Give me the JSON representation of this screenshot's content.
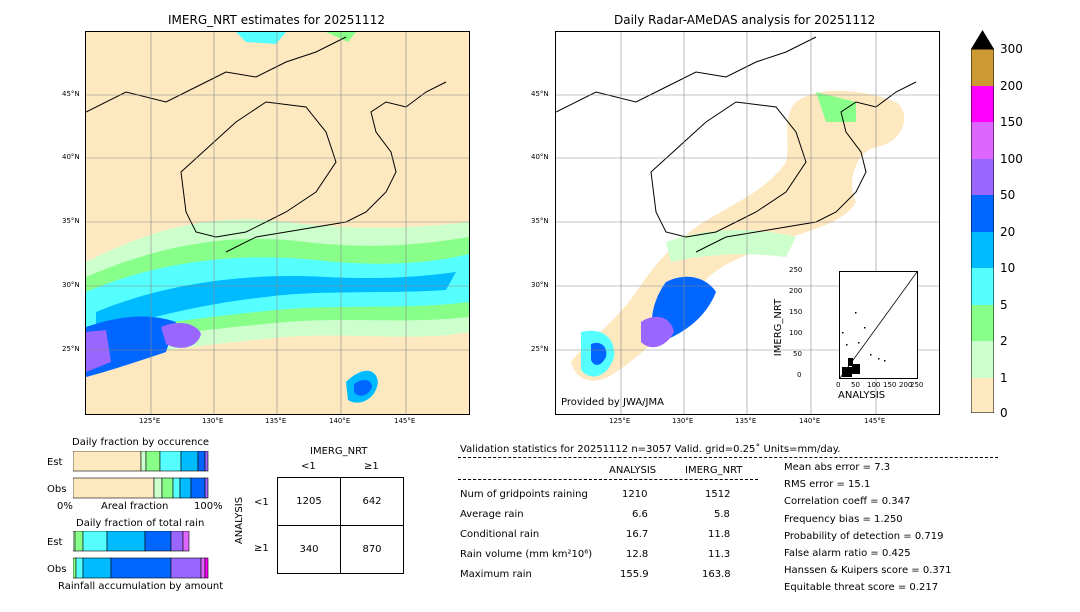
{
  "left_map": {
    "title": "IMERG_NRT estimates for 20251112",
    "lat_ticks": [
      "45°N",
      "40°N",
      "35°N",
      "30°N",
      "25°N"
    ],
    "lon_ticks": [
      "125°E",
      "130°E",
      "135°E",
      "140°E",
      "145°E"
    ]
  },
  "right_map": {
    "title": "Daily Radar-AMeDAS analysis for 20251112",
    "credit": "Provided by JWA/JMA",
    "lat_ticks": [
      "45°N",
      "40°N",
      "35°N",
      "30°N",
      "25°N"
    ],
    "lon_ticks": [
      "125°E",
      "130°E",
      "135°E",
      "140°E",
      "145°E"
    ]
  },
  "colorbar": {
    "labels": [
      "300",
      "200",
      "150",
      "100",
      "50",
      "20",
      "10",
      "5",
      "2",
      "1",
      "0"
    ],
    "colors": [
      "#cc9933",
      "#ff00ff",
      "#dd66ff",
      "#9966ff",
      "#0066ff",
      "#00bbff",
      "#55ffff",
      "#88ff88",
      "#ccffcc",
      "#fde8c0"
    ]
  },
  "scatter": {
    "xlabel": "ANALYSIS",
    "ylabel": "IMERG_NRT",
    "ticks": [
      "0",
      "50",
      "100",
      "150",
      "200",
      "250"
    ]
  },
  "occurrence": {
    "title": "Daily fraction by occurence",
    "rows": [
      "Est",
      "Obs"
    ],
    "axis_left": "0%",
    "axis_mid": "Areal fraction",
    "axis_right": "100%"
  },
  "total_rain": {
    "title": "Daily fraction of total rain",
    "rows": [
      "Est",
      "Obs"
    ],
    "footer": "Rainfall accumulation by amount"
  },
  "contingency": {
    "col_title": "IMERG_NRT",
    "col_lt": "<1",
    "col_ge": "≥1",
    "row_title": "ANALYSIS",
    "row_lt": "<1",
    "row_ge": "≥1",
    "a": "1205",
    "b": "642",
    "c": "340",
    "d": "870"
  },
  "validation": {
    "header": "Validation statistics for 20251112  n=3057 Valid. grid=0.25˚ Units=mm/day.",
    "col_analysis": "ANALYSIS",
    "col_imerg": "IMERG_NRT",
    "rows": [
      {
        "label": "Num of gridpoints raining",
        "analysis": "1210",
        "imerg": "1512"
      },
      {
        "label": "Average rain",
        "analysis": "6.6",
        "imerg": "5.8"
      },
      {
        "label": "Conditional rain",
        "analysis": "16.7",
        "imerg": "11.8"
      },
      {
        "label": "Rain volume (mm km²10⁶)",
        "analysis": "12.8",
        "imerg": "11.3"
      },
      {
        "label": "Maximum rain",
        "analysis": "155.9",
        "imerg": "163.8"
      }
    ],
    "scores": [
      "Mean abs error =    7.3",
      "RMS error =   15.1",
      "Correlation coeff =  0.347",
      "Frequency bias =  1.250",
      "Probability of detection =  0.719",
      "False alarm ratio =  0.425",
      "Hanssen & Kuipers score =  0.371",
      "Equitable threat score =  0.217"
    ]
  }
}
